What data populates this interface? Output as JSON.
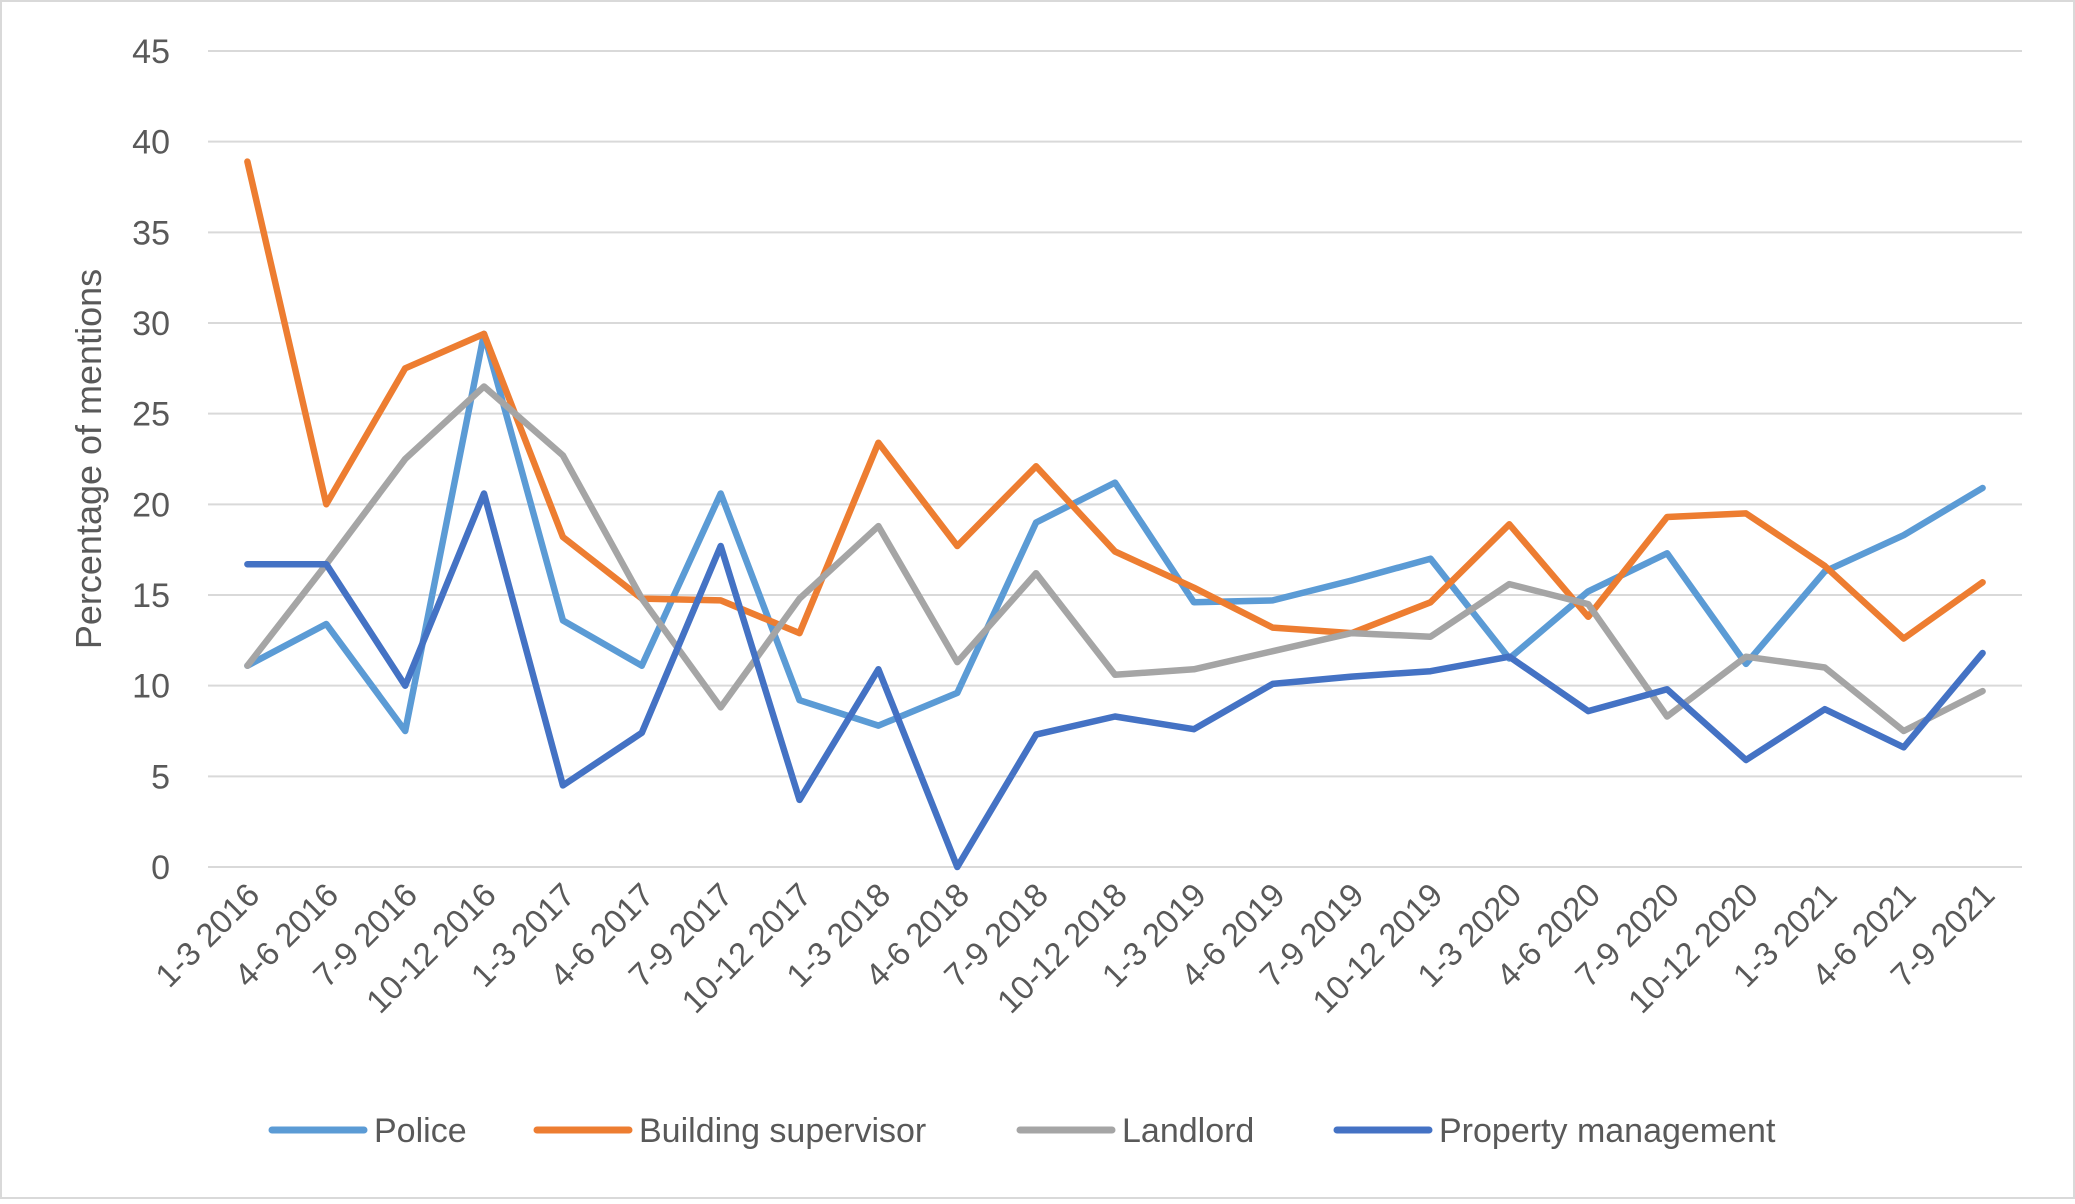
{
  "chart_data": {
    "type": "line",
    "title": "",
    "xlabel": "",
    "ylabel": "Percentage of mentions",
    "ylim": [
      0,
      45
    ],
    "yticks": [
      0,
      5,
      10,
      15,
      20,
      25,
      30,
      35,
      40,
      45
    ],
    "grid": true,
    "legend_position": "bottom",
    "categories": [
      "1-3 2016",
      "4-6 2016",
      "7-9 2016",
      "10-12 2016",
      "1-3 2017",
      "4-6 2017",
      "7-9 2017",
      "10-12 2017",
      "1-3 2018",
      "4-6 2018",
      "7-9 2018",
      "10-12 2018",
      "1-3 2019",
      "4-6 2019",
      "7-9 2019",
      "10-12 2019",
      "1-3 2020",
      "4-6 2020",
      "7-9 2020",
      "10-12 2020",
      "1-3 2021",
      "4-6 2021",
      "7-9 2021"
    ],
    "series": [
      {
        "name": "Police",
        "color": "#5b9bd5",
        "values": [
          11.1,
          13.4,
          7.5,
          29.4,
          13.6,
          11.1,
          20.6,
          9.2,
          7.8,
          9.6,
          19.0,
          21.2,
          14.6,
          14.7,
          15.8,
          17.0,
          11.5,
          15.2,
          17.3,
          11.2,
          16.3,
          18.3,
          20.9
        ]
      },
      {
        "name": "Building supervisor",
        "color": "#ed7d31",
        "values": [
          38.9,
          20.0,
          27.5,
          29.4,
          18.2,
          14.8,
          14.7,
          12.9,
          23.4,
          17.7,
          22.1,
          17.4,
          15.4,
          13.2,
          12.9,
          14.6,
          18.9,
          13.8,
          19.3,
          19.5,
          16.6,
          12.6,
          15.7
        ]
      },
      {
        "name": "Landlord",
        "color": "#a5a5a5",
        "values": [
          11.1,
          16.7,
          22.5,
          26.5,
          22.7,
          14.8,
          8.8,
          14.8,
          18.8,
          11.3,
          16.2,
          10.6,
          10.9,
          11.9,
          12.9,
          12.7,
          15.6,
          14.5,
          8.3,
          11.6,
          11.0,
          7.5,
          9.7
        ]
      },
      {
        "name": "Property management",
        "color": "#4472c4",
        "values": [
          16.7,
          16.7,
          10.0,
          20.6,
          4.5,
          7.4,
          17.7,
          3.7,
          10.9,
          0.0,
          7.3,
          8.3,
          7.6,
          10.1,
          10.5,
          10.8,
          11.6,
          8.6,
          9.8,
          5.9,
          8.7,
          6.6,
          11.8
        ]
      }
    ]
  }
}
